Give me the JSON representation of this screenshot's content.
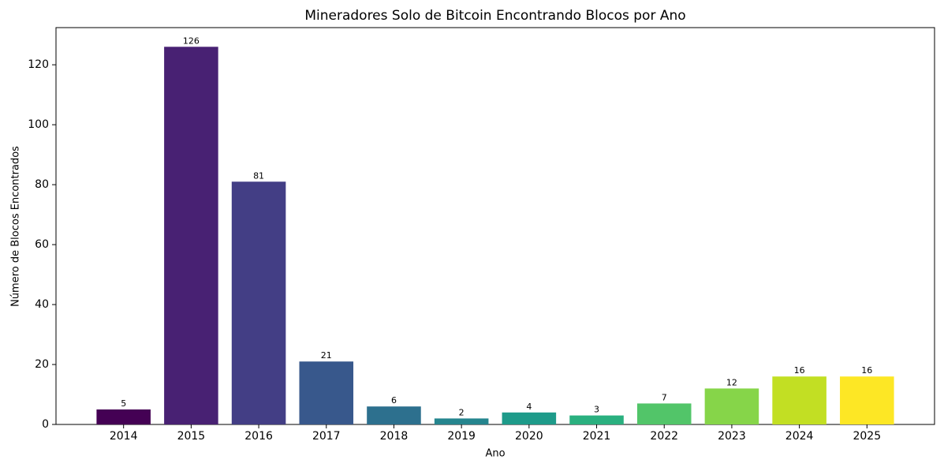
{
  "chart_data": {
    "type": "bar",
    "title": "Mineradores Solo de Bitcoin Encontrando Blocos por Ano",
    "x_label": "Ano",
    "y_label": "Número de Blocos Encontrados",
    "categories": [
      "2014",
      "2015",
      "2016",
      "2017",
      "2018",
      "2019",
      "2020",
      "2021",
      "2022",
      "2023",
      "2024",
      "2025"
    ],
    "values": [
      5,
      126,
      81,
      21,
      6,
      2,
      4,
      3,
      7,
      12,
      16,
      16
    ],
    "colors": [
      "#440154",
      "#482173",
      "#433e85",
      "#38588c",
      "#2d708e",
      "#25858e",
      "#1e9b8a",
      "#2ab07f",
      "#52c569",
      "#86d549",
      "#c2df23",
      "#fde725"
    ],
    "ylim": [
      0,
      132.4
    ],
    "yticks": [
      0,
      20,
      40,
      60,
      80,
      100,
      120
    ],
    "grid": false
  }
}
